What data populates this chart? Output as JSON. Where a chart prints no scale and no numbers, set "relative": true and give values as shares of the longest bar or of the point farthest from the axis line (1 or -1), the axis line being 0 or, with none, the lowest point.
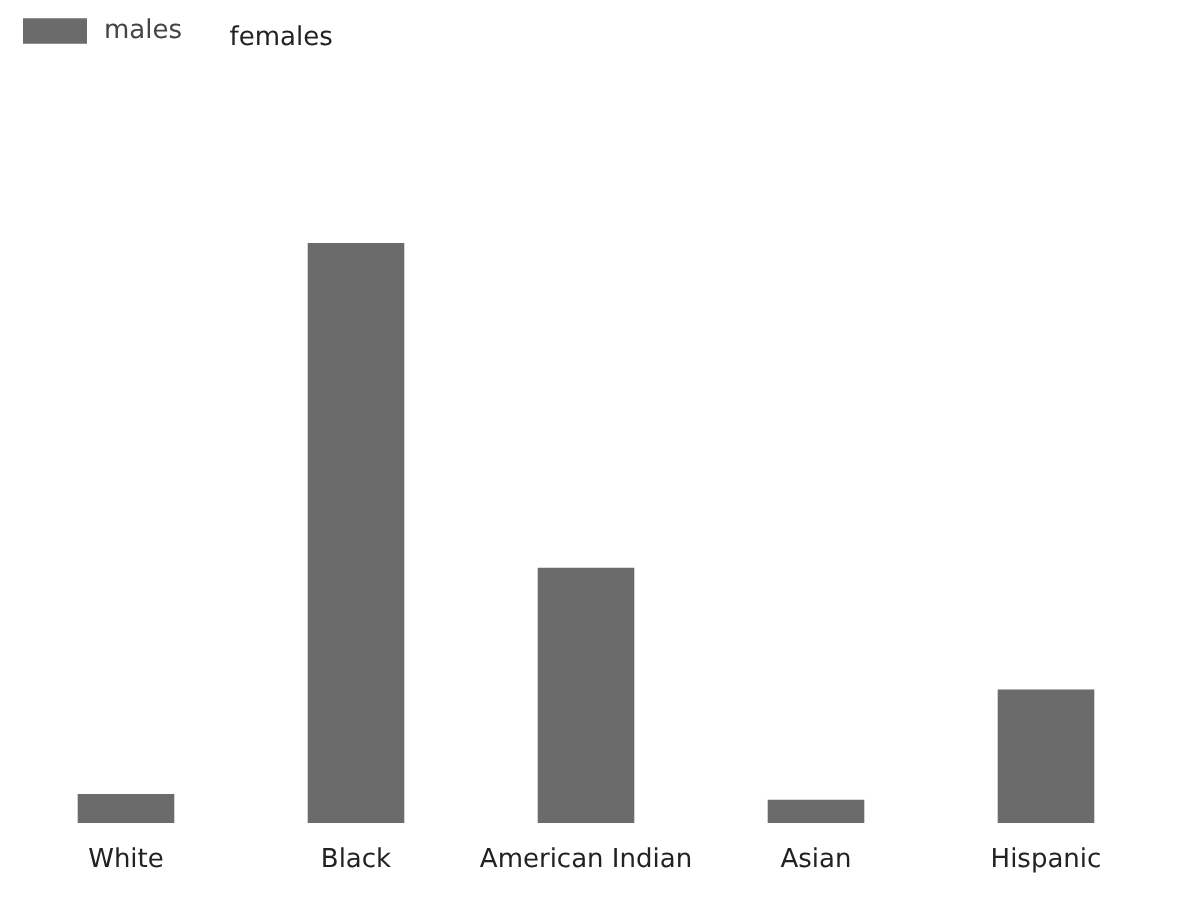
{
  "chart_data": {
    "type": "bar",
    "relative": true,
    "categories": [
      "White",
      "Black",
      "American Indian",
      "Asian",
      "Hispanic"
    ],
    "series": [
      {
        "name": "males",
        "color": "#6b6b6b",
        "values": [
          0.05,
          1,
          0.44,
          0.04,
          0.23
        ]
      }
    ],
    "annotations": [
      "females"
    ],
    "legend": "top left"
  }
}
